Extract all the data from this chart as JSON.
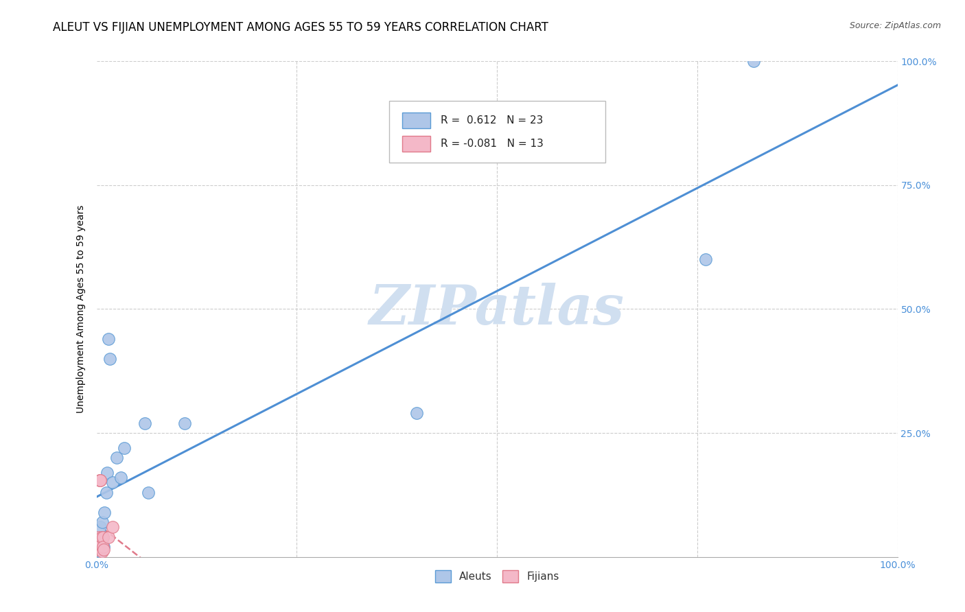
{
  "title": "ALEUT VS FIJIAN UNEMPLOYMENT AMONG AGES 55 TO 59 YEARS CORRELATION CHART",
  "source": "Source: ZipAtlas.com",
  "ylabel": "Unemployment Among Ages 55 to 59 years",
  "aleut_R": 0.612,
  "aleut_N": 23,
  "fijian_R": -0.081,
  "fijian_N": 13,
  "aleut_fill": "#aec6e8",
  "fijian_fill": "#f4b8c8",
  "aleut_edge": "#5b9bd5",
  "fijian_edge": "#e07a8a",
  "aleut_line": "#4e8fd4",
  "fijian_line": "#e07a8a",
  "watermark_color": "#d0dff0",
  "aleuts_x": [
    0.003,
    0.004,
    0.005,
    0.005,
    0.006,
    0.007,
    0.008,
    0.009,
    0.01,
    0.012,
    0.013,
    0.015,
    0.017,
    0.02,
    0.025,
    0.03,
    0.035,
    0.06,
    0.065,
    0.11,
    0.4,
    0.76,
    0.82
  ],
  "aleuts_y": [
    0.02,
    0.04,
    0.01,
    0.06,
    0.03,
    0.07,
    0.04,
    0.02,
    0.09,
    0.13,
    0.17,
    0.44,
    0.4,
    0.15,
    0.2,
    0.16,
    0.22,
    0.27,
    0.13,
    0.27,
    0.29,
    0.6,
    1.0
  ],
  "fijians_x": [
    0.001,
    0.002,
    0.003,
    0.004,
    0.005,
    0.005,
    0.006,
    0.007,
    0.008,
    0.008,
    0.009,
    0.015,
    0.02
  ],
  "fijians_y": [
    0.015,
    0.04,
    0.02,
    0.155,
    0.155,
    0.155,
    0.04,
    0.01,
    0.04,
    0.02,
    0.015,
    0.04,
    0.06
  ],
  "xlim": [
    0.0,
    1.0
  ],
  "ylim": [
    0.0,
    1.0
  ],
  "xticks": [
    0.0,
    0.25,
    0.5,
    0.75,
    1.0
  ],
  "xticklabels": [
    "0.0%",
    "",
    "",
    "",
    "100.0%"
  ],
  "yticks": [
    0.0,
    0.25,
    0.5,
    0.75,
    1.0
  ],
  "right_yticklabels": [
    "",
    "25.0%",
    "50.0%",
    "75.0%",
    "100.0%"
  ],
  "title_fontsize": 12,
  "source_fontsize": 9,
  "axis_label_fontsize": 10,
  "tick_fontsize": 10,
  "legend_fontsize": 11
}
